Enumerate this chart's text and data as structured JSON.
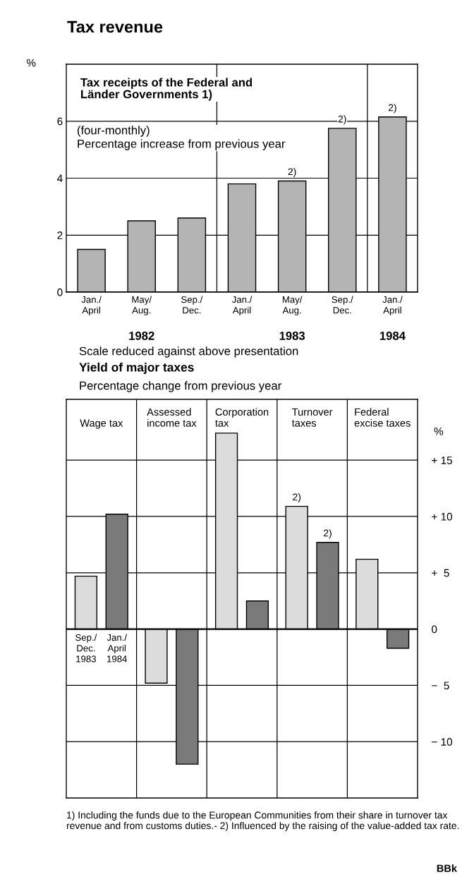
{
  "chart_data": [
    {
      "type": "bar",
      "title": "Tax revenue",
      "subtitle": "Tax receipts of the Federal and\nLänder Governments 1)",
      "ylabel": "%",
      "annotations": [
        "(four-monthly)\nPercentage increase from previous year",
        "1982",
        "1983",
        "1984",
        "2)",
        "2)",
        "2)"
      ],
      "categories": [
        "Jan./\nApril",
        "May/\nAug.",
        "Sep./\nDec.",
        "Jan./\nApril",
        "May/\nAug.",
        "Sep./\nDec.",
        "Jan./\nApril"
      ],
      "series": [
        {
          "color": "#b4b4b4",
          "values": [
            1.5,
            2.5,
            2.6,
            3.8,
            3.9,
            5.75,
            6.15
          ]
        }
      ],
      "ylim": [
        0,
        8
      ],
      "yticks": [
        0,
        2,
        4,
        6
      ],
      "grid": "y"
    },
    {
      "type": "bar",
      "title": "Yield of major taxes",
      "subtitle": "Percentage change from previous year",
      "ylabel": "%",
      "annotations": [
        "Scale reduced against above presentation",
        "1) Including the funds due to the European Communities from their share in turnover tax revenue and from customs duties.- 2) Influenced by the raising of the value-added tax rate.",
        "BBk",
        "2)",
        "2)"
      ],
      "categories": [
        "Wage tax",
        "Assessed\nincome tax",
        "Corporation\ntax",
        "Turnover\ntaxes",
        "Federal\nexcise taxes"
      ],
      "series": [
        {
          "name": "Sep./\nDec.\n1983",
          "color": "#dcdcdc",
          "values": [
            4.7,
            -4.8,
            17.4,
            10.9,
            6.2
          ]
        },
        {
          "name": "Jan./\nApril\n1984",
          "color": "#7a7a7a",
          "values": [
            10.2,
            -12,
            2.5,
            7.7,
            -1.7
          ]
        }
      ],
      "ylim": [
        -15,
        20.4
      ],
      "yticks": [
        {
          "value": -10,
          "label": "− 10"
        },
        {
          "value": -5,
          "label": "−  5"
        },
        0,
        {
          "value": 5,
          "label": "+  5"
        },
        {
          "value": 10,
          "label": "+ 10"
        },
        {
          "value": 15,
          "label": "+ 15"
        }
      ],
      "grid": true
    }
  ]
}
